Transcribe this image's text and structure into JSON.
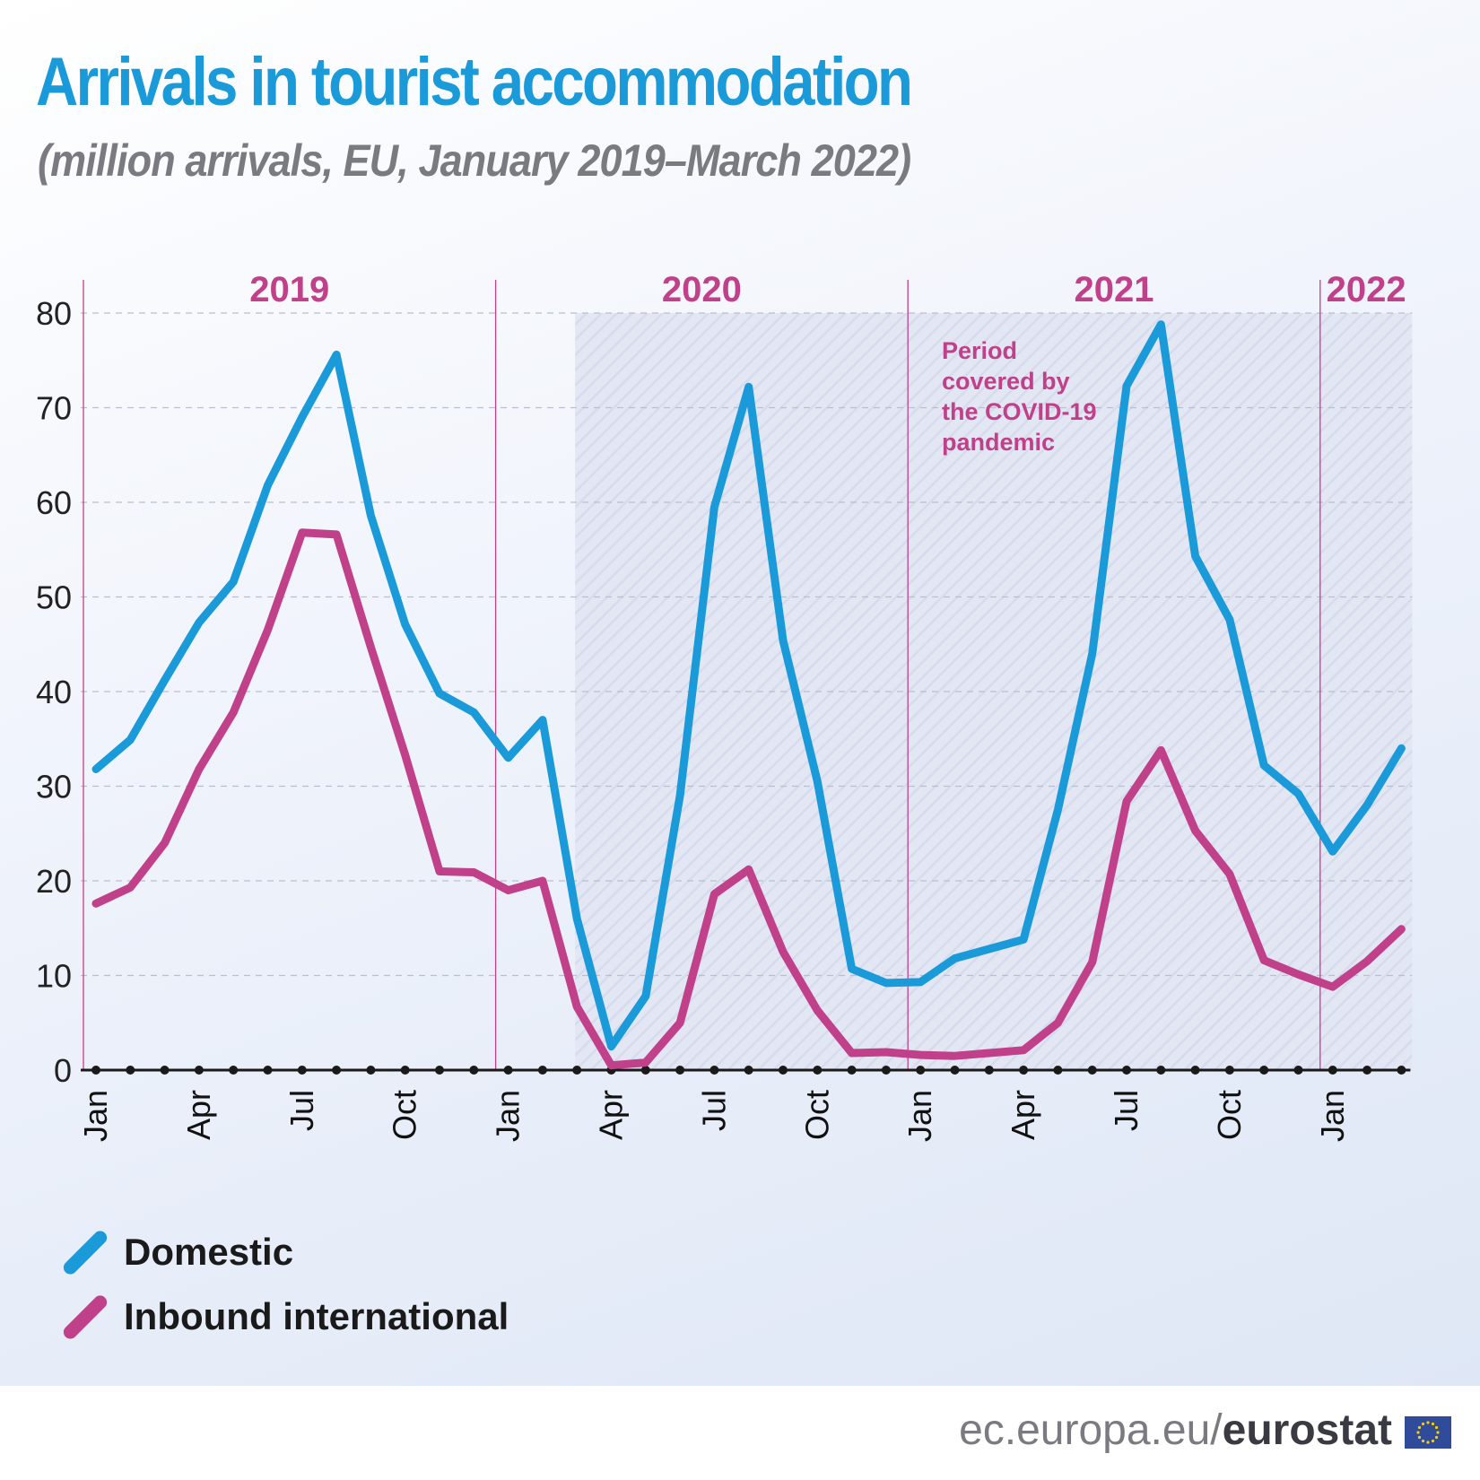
{
  "title": "Arrivals in tourist accommodation",
  "subtitle": "(million arrivals, EU, January 2019–March 2022)",
  "annotation": [
    "Period",
    "covered by",
    "the COVID-19",
    "pandemic"
  ],
  "legend": [
    {
      "label": "Domestic",
      "color": "#1a9ad8"
    },
    {
      "label": "Inbound international",
      "color": "#c1408a"
    }
  ],
  "footer": {
    "url_prefix": "ec.europa.eu/",
    "brand": "eurostat",
    "flag_icon": "eu-flag-icon"
  },
  "chart_data": {
    "type": "line",
    "title": "Arrivals in tourist accommodation",
    "ylabel": "",
    "xlabel": "",
    "ylim": [
      0,
      80
    ],
    "yticks": [
      0,
      10,
      20,
      30,
      40,
      50,
      60,
      70,
      80
    ],
    "grid": true,
    "year_labels": [
      "2019",
      "2020",
      "2021",
      "2022"
    ],
    "x_tick_labels": [
      "Jan",
      "",
      "",
      "Apr",
      "",
      "",
      "Jul",
      "",
      "",
      "Oct",
      "",
      "",
      "Jan",
      "",
      "",
      "Apr",
      "",
      "",
      "Jul",
      "",
      "",
      "Oct",
      "",
      "",
      "Jan",
      "",
      "",
      "Apr",
      "",
      "",
      "Jul",
      "",
      "",
      "Oct",
      "",
      "",
      "Jan",
      "",
      ""
    ],
    "shaded_period": {
      "from": "2020-03",
      "to": "2022-03"
    },
    "x": [
      "2019-01",
      "2019-02",
      "2019-03",
      "2019-04",
      "2019-05",
      "2019-06",
      "2019-07",
      "2019-08",
      "2019-09",
      "2019-10",
      "2019-11",
      "2019-12",
      "2020-01",
      "2020-02",
      "2020-03",
      "2020-04",
      "2020-05",
      "2020-06",
      "2020-07",
      "2020-08",
      "2020-09",
      "2020-10",
      "2020-11",
      "2020-12",
      "2021-01",
      "2021-02",
      "2021-03",
      "2021-04",
      "2021-05",
      "2021-06",
      "2021-07",
      "2021-08",
      "2021-09",
      "2021-10",
      "2021-11",
      "2021-12",
      "2022-01",
      "2022-02",
      "2022-03"
    ],
    "series": [
      {
        "name": "Domestic",
        "color": "#1a9ad8",
        "values": [
          31.8,
          34.9,
          41.2,
          47.3,
          51.6,
          61.8,
          69.0,
          75.6,
          58.6,
          47.1,
          39.8,
          37.8,
          33.0,
          37.0,
          16.0,
          2.5,
          7.8,
          29.0,
          59.5,
          72.2,
          45.4,
          30.5,
          10.7,
          9.2,
          9.3,
          11.8,
          12.8,
          13.8,
          27.5,
          44.0,
          72.3,
          78.8,
          54.3,
          47.6,
          32.2,
          29.2,
          23.1,
          28.0,
          34.0
        ]
      },
      {
        "name": "Inbound international",
        "color": "#c1408a",
        "values": [
          17.6,
          19.3,
          24.0,
          31.8,
          37.8,
          46.5,
          56.8,
          56.6,
          44.7,
          33.3,
          21.0,
          20.9,
          19.0,
          20.0,
          6.7,
          0.5,
          0.8,
          5.0,
          18.6,
          21.2,
          12.5,
          6.3,
          1.8,
          1.9,
          1.6,
          1.5,
          1.8,
          2.1,
          5.0,
          11.4,
          28.4,
          33.8,
          25.3,
          20.7,
          11.6,
          10.1,
          8.8,
          11.5,
          14.9
        ]
      }
    ]
  }
}
